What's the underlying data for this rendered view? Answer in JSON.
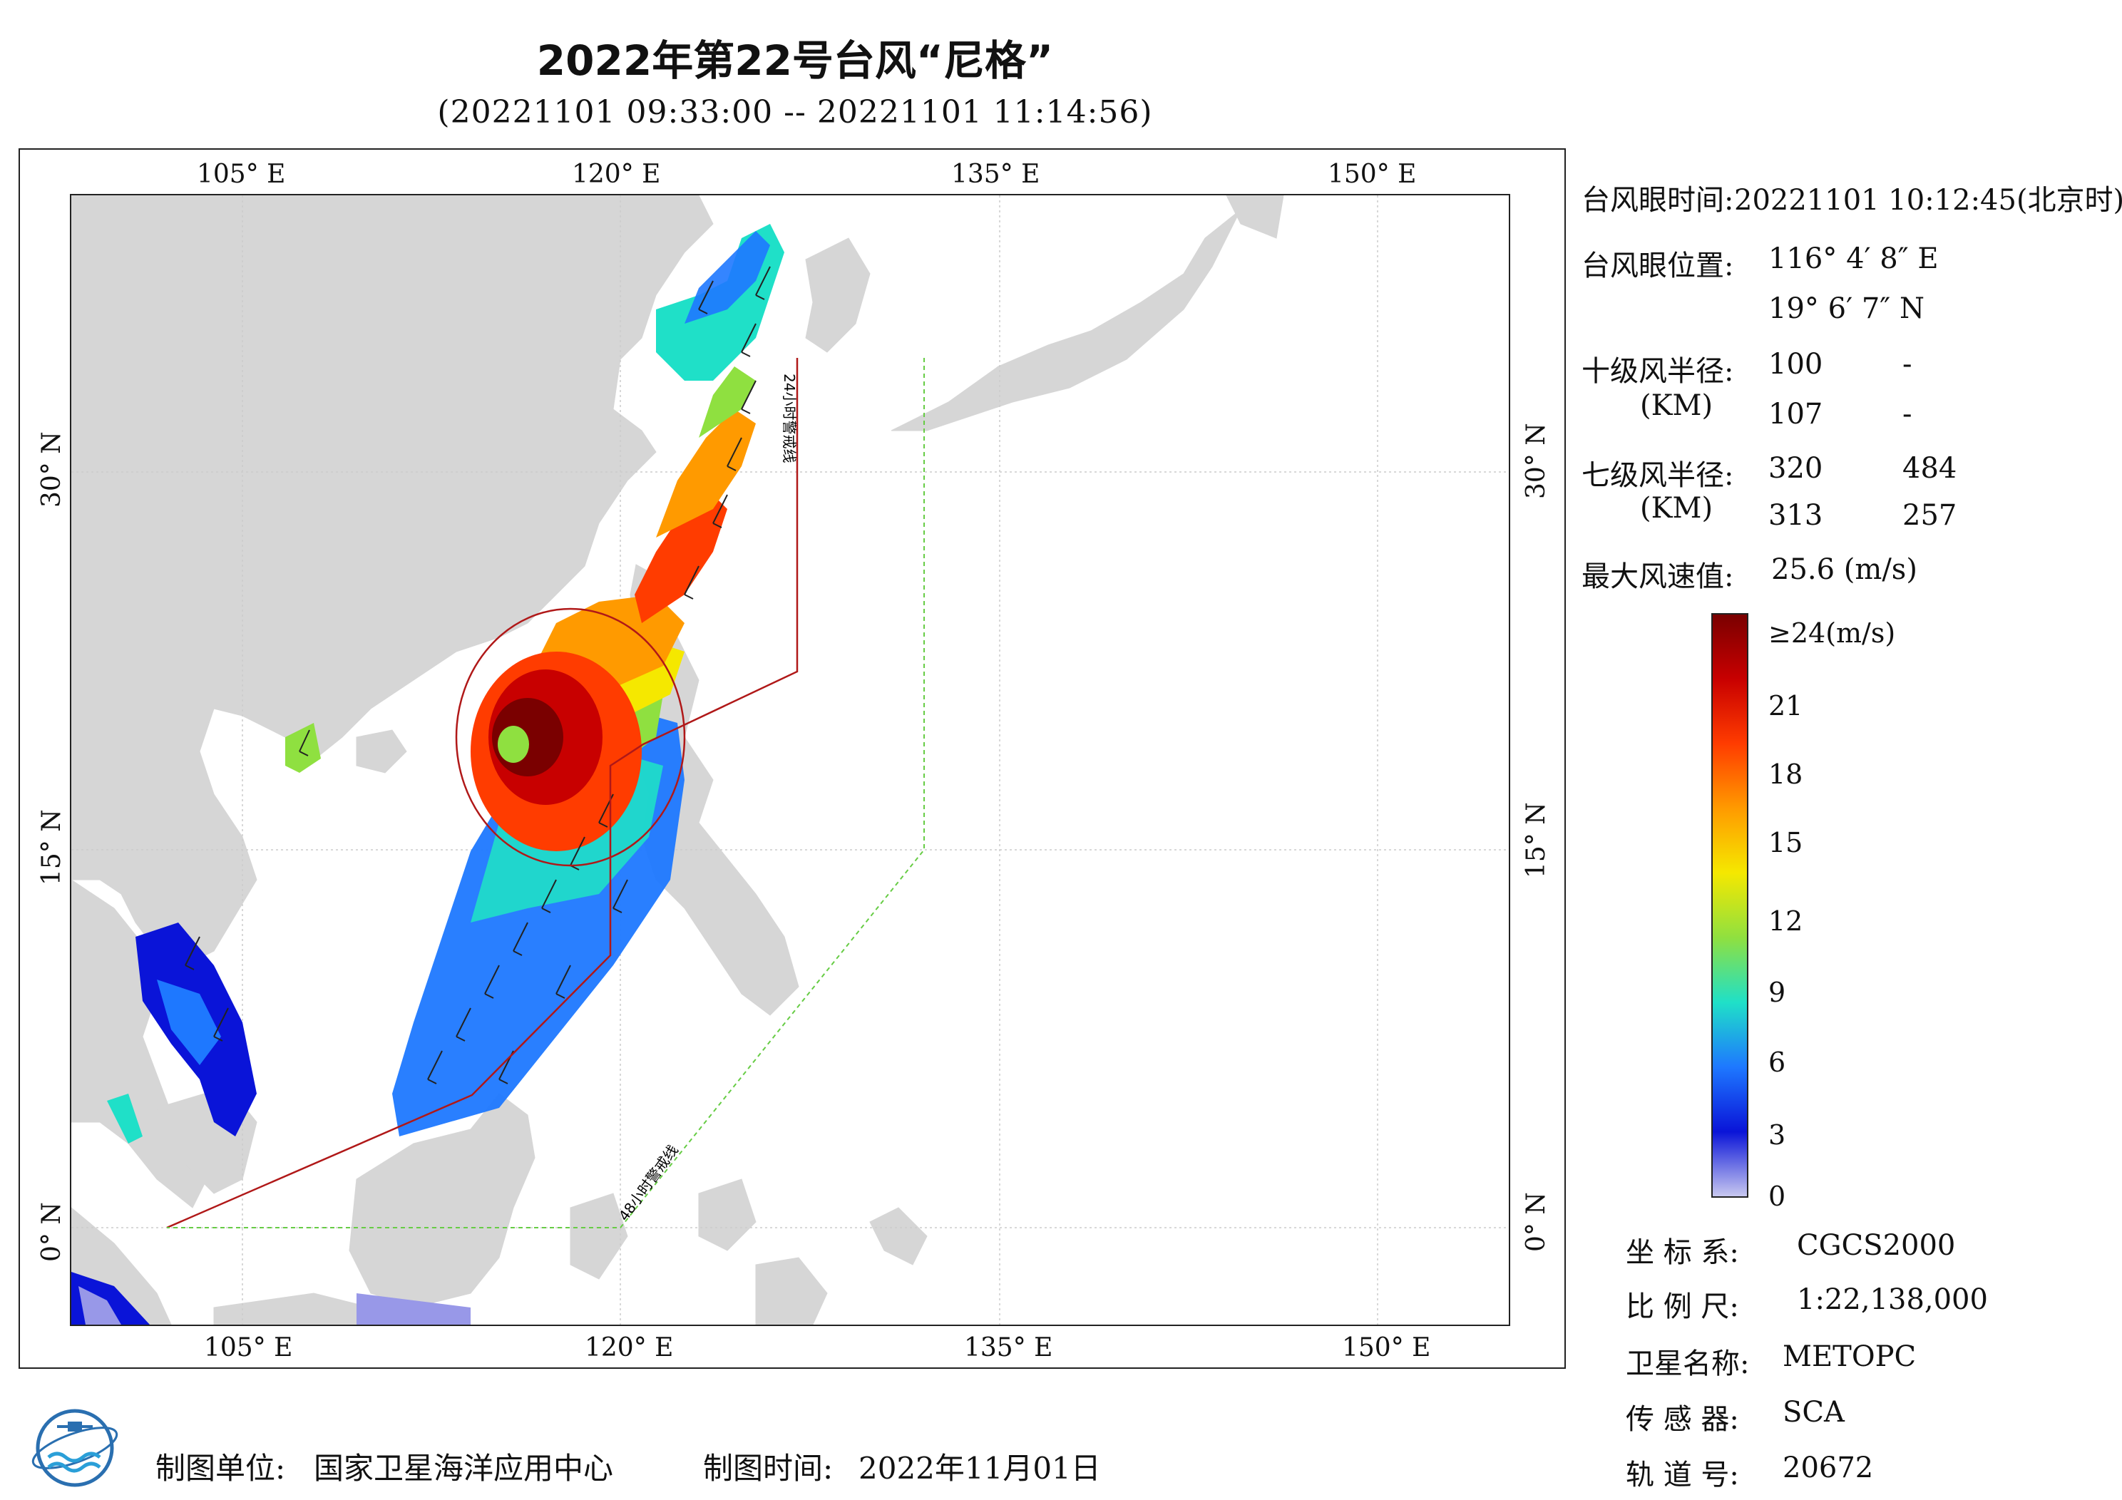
{
  "title": "2022年第22号台风“尼格”",
  "subtitle": "(20221101 09:33:00 -- 20221101 11:14:56)",
  "axes": {
    "lon_labels": [
      "105° E",
      "120° E",
      "135° E",
      "150° E"
    ],
    "lat_labels": [
      "30° N",
      "15° N",
      "0° N"
    ],
    "lon_range": [
      98,
      155
    ],
    "lat_range": [
      -4,
      41
    ]
  },
  "warning_lines": {
    "line_24h": "24小时警戒线",
    "line_48h": "48小时警戒线",
    "color_24h": "#b01818",
    "color_48h": "#66cc44"
  },
  "info": {
    "eye_time_label": "台风眼时间:",
    "eye_time_value": "20221101 10:12:45(北京时)",
    "eye_pos_label": "台风眼位置:",
    "eye_lon": "116° 4′ 8″ E",
    "eye_lat": "19° 6′ 7″ N",
    "r10_label": "十级风半径:",
    "r10_unit": "(KM)",
    "r10_values": [
      [
        "100",
        "-"
      ],
      [
        "107",
        "-"
      ]
    ],
    "r7_label": "七级风半径:",
    "r7_unit": "(KM)",
    "r7_values": [
      [
        "320",
        "484"
      ],
      [
        "313",
        "257"
      ]
    ],
    "max_wind_label": "最大风速值:",
    "max_wind_value": "25.6  (m/s)"
  },
  "colorbar": {
    "labels": [
      "≥24(m/s)",
      "21",
      "18",
      "15",
      "12",
      "9",
      "6",
      "3",
      "0"
    ],
    "colors": [
      "#7a0000",
      "#c80000",
      "#ff3c00",
      "#ff9a00",
      "#f5e800",
      "#8fe040",
      "#1fe0c8",
      "#1e78ff",
      "#0a14d8",
      "#c8c8f0"
    ]
  },
  "meta": {
    "crs_label": "坐 标 系:",
    "crs_value": "CGCS2000",
    "scale_label": "比 例 尺:",
    "scale_value": "1:22,138,000",
    "satellite_label": "卫星名称:",
    "satellite_value": "METOPC",
    "sensor_label": "传 感 器:",
    "sensor_value": "SCA",
    "orbit_label": "轨 道 号:",
    "orbit_value": "20672"
  },
  "footer": {
    "producer_label": "制图单位:",
    "producer_value": "国家卫星海洋应用中心",
    "date_label": "制图时间:",
    "date_value": "2022年11月01日"
  }
}
